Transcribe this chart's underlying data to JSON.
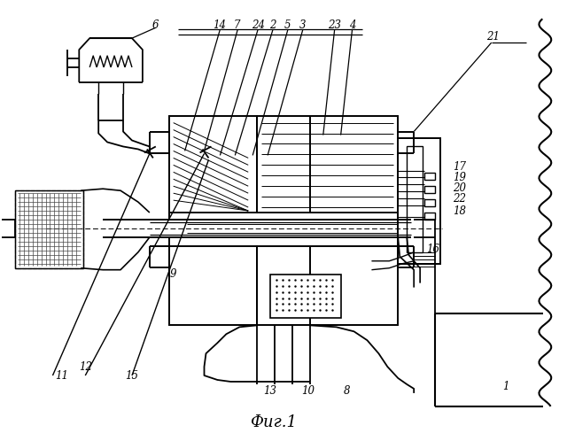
{
  "title": "Фиг.1",
  "bg_color": "#ffffff",
  "fig_width": 6.4,
  "fig_height": 4.98
}
